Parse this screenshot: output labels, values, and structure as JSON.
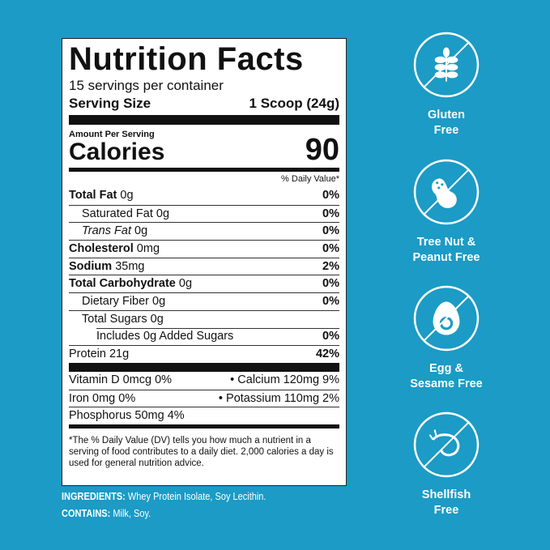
{
  "label": {
    "title": "Nutrition Facts",
    "servings": "15 servings per container",
    "serving_size_label": "Serving Size",
    "serving_size_value": "1 Scoop (24g)",
    "amount_per_serving": "Amount Per Serving",
    "calories_label": "Calories",
    "calories_value": "90",
    "dv_header": "% Daily Value*",
    "rows": [
      {
        "name": "Total Fat",
        "amount": "0g",
        "dv": "0%"
      },
      {
        "name": "Saturated Fat",
        "amount": "0g",
        "dv": "0%"
      },
      {
        "name": "Trans Fat",
        "amount": "0g",
        "dv": "0%"
      },
      {
        "name": "Cholesterol",
        "amount": "0mg",
        "dv": "0%"
      },
      {
        "name": "Sodium",
        "amount": "35mg",
        "dv": "2%"
      },
      {
        "name": "Total Carbohydrate",
        "amount": "0g",
        "dv": "0%"
      },
      {
        "name": "Dietary Fiber",
        "amount": "0g",
        "dv": "0%"
      },
      {
        "name": "Total Sugars",
        "amount": "0g",
        "dv": ""
      },
      {
        "name": "Includes 0g Added Sugars",
        "amount": "",
        "dv": "0%"
      },
      {
        "name": "Protein",
        "amount": "21g",
        "dv": "42%"
      }
    ],
    "vitamins": [
      {
        "left": "Vitamin D 0mcg 0%",
        "right": "• Calcium 120mg 9%"
      },
      {
        "left": "Iron 0mg 0%",
        "right": "• Potassium 110mg 2%"
      },
      {
        "left": "Phosphorus 50mg 4%",
        "right": ""
      }
    ],
    "footnote": "*The % Daily Value (DV) tells you how much a nutrient in a serving of food contributes to a daily diet. 2,000 calories a day is used for general nutrition advice."
  },
  "ingredients": {
    "label": "INGREDIENTS:",
    "value": " Whey Protein Isolate, Soy Lecithin."
  },
  "contains": {
    "label": "CONTAINS:",
    "value": " Milk, Soy."
  },
  "badges": [
    {
      "icon": "wheat-icon",
      "line1": "Gluten",
      "line2": "Free"
    },
    {
      "icon": "peanut-icon",
      "line1": "Tree Nut &",
      "line2": "Peanut Free"
    },
    {
      "icon": "egg-icon",
      "line1": "Egg &",
      "line2": "Sesame Free"
    },
    {
      "icon": "shrimp-icon",
      "line1": "Shellfish",
      "line2": "Free"
    }
  ],
  "colors": {
    "background": "#1b9bc5",
    "label": "#ffffff",
    "text": "#111111"
  }
}
